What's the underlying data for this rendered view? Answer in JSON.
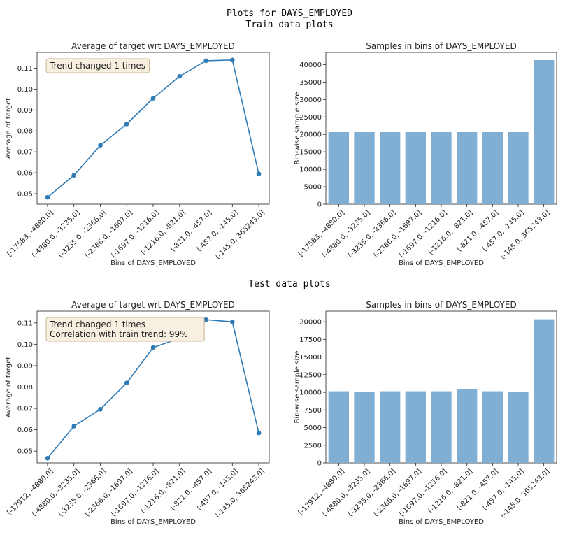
{
  "heading": {
    "title": "Plots for DAYS_EMPLOYED",
    "train_subtitle": "Train data plots",
    "test_subtitle": "Test data plots"
  },
  "colors": {
    "line": "#2f7bb6",
    "bar": "#80afd3",
    "annotation_fill": "#f7f0e0",
    "annotation_stroke": "#c9b58f"
  },
  "chart_data": [
    {
      "type": "line",
      "title": "Average of target wrt DAYS_EMPLOYED",
      "xlabel": "Bins of DAYS_EMPLOYED",
      "ylabel": "Average of target",
      "categories": [
        "[-17583, -4880.0]",
        "(-4880.0, -3235.0]",
        "(-3235.0, -2366.0]",
        "(-2366.0, -1697.0]",
        "(-1697.0, -1216.0]",
        "(-1216.0, -821.0]",
        "(-821.0, -457.0]",
        "(-457.0, -145.0]",
        "(-145.0, 365243.0]"
      ],
      "values": [
        0.0483,
        0.0588,
        0.0731,
        0.0833,
        0.0956,
        0.1061,
        0.1135,
        0.1139,
        0.0595
      ],
      "ylim": [
        0.045,
        0.1175
      ],
      "yticks": [
        "0.05",
        "0.06",
        "0.07",
        "0.08",
        "0.09",
        "0.10",
        "0.11"
      ],
      "annotation": [
        "Trend changed 1 times"
      ],
      "grid": false
    },
    {
      "type": "bar",
      "title": "Samples in bins of DAYS_EMPLOYED",
      "xlabel": "Bins of DAYS_EMPLOYED",
      "ylabel": "Bin-wise sample size",
      "categories": [
        "[-17583, -4880.0]",
        "(-4880.0, -3235.0]",
        "(-3235.0, -2366.0]",
        "(-2366.0, -1697.0]",
        "(-1697.0, -1216.0]",
        "(-1216.0, -821.0]",
        "(-821.0, -457.0]",
        "(-457.0, -145.0]",
        "(-145.0, 365243.0]"
      ],
      "values": [
        20650,
        20650,
        20650,
        20650,
        20650,
        20650,
        20650,
        20650,
        41300
      ],
      "ylim": [
        0,
        43500
      ],
      "yticks": [
        "0",
        "5000",
        "10000",
        "15000",
        "20000",
        "25000",
        "30000",
        "35000",
        "40000"
      ],
      "grid": false
    },
    {
      "type": "line",
      "title": "Average of target wrt DAYS_EMPLOYED",
      "xlabel": "Bins of DAYS_EMPLOYED",
      "ylabel": "Average of target",
      "categories": [
        "[-17912, -4880.0]",
        "(-4880.0, -3235.0]",
        "(-3235.0, -2366.0]",
        "(-2366.0, -1697.0]",
        "(-1697.0, -1216.0]",
        "(-1216.0, -821.0]",
        "(-821.0, -457.0]",
        "(-457.0, -145.0]",
        "(-145.0, 365243.0]"
      ],
      "values": [
        0.0467,
        0.0617,
        0.0696,
        0.0819,
        0.0985,
        0.1028,
        0.1115,
        0.1105,
        0.0585
      ],
      "ylim": [
        0.0445,
        0.1155
      ],
      "yticks": [
        "0.05",
        "0.06",
        "0.07",
        "0.08",
        "0.09",
        "0.10",
        "0.11"
      ],
      "annotation": [
        "Trend changed 1 times",
        "Correlation with train trend: 99%"
      ],
      "grid": false
    },
    {
      "type": "bar",
      "title": "Samples in bins of DAYS_EMPLOYED",
      "xlabel": "Bins of DAYS_EMPLOYED",
      "ylabel": "Bin-wise sample size",
      "categories": [
        "[-17912, -4880.0]",
        "(-4880.0, -3235.0]",
        "(-3235.0, -2366.0]",
        "(-2366.0, -1697.0]",
        "(-1697.0, -1216.0]",
        "(-1216.0, -821.0]",
        "(-821.0, -457.0]",
        "(-457.0, -145.0]",
        "(-145.0, 365243.0]"
      ],
      "values": [
        10150,
        10050,
        10150,
        10150,
        10150,
        10400,
        10150,
        10050,
        20350
      ],
      "ylim": [
        0,
        21500
      ],
      "yticks": [
        "0",
        "2500",
        "5000",
        "7500",
        "10000",
        "12500",
        "15000",
        "17500",
        "20000"
      ],
      "grid": false
    }
  ]
}
